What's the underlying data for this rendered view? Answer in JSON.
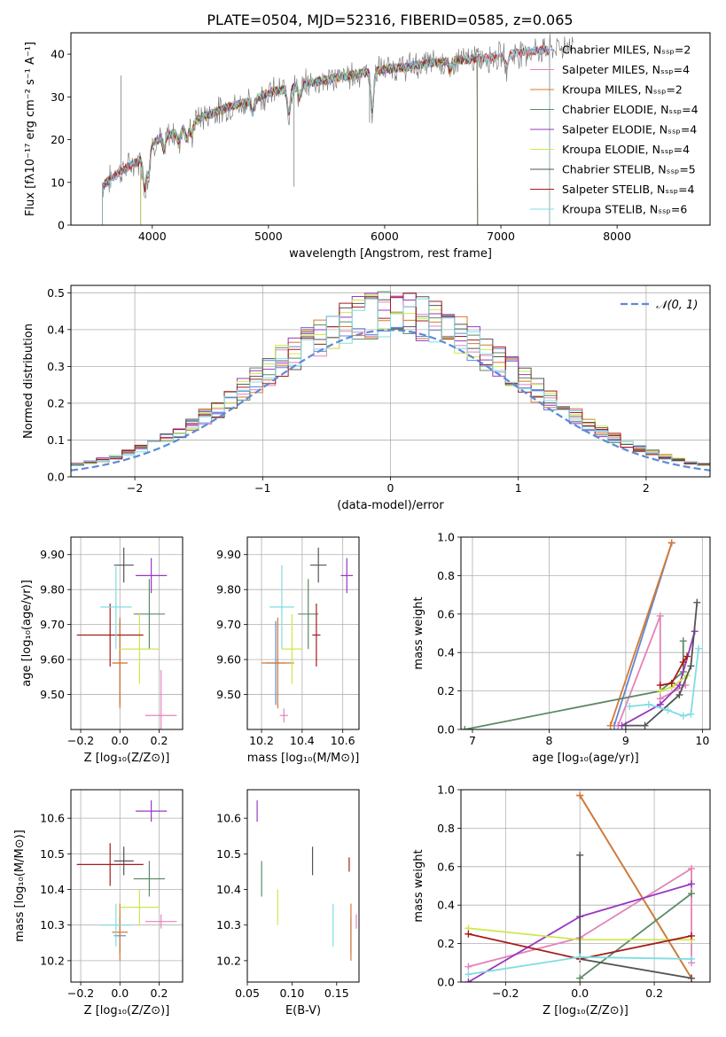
{
  "figure_title": "PLATE=0504, MJD=52316, FIBERID=0585, z=0.065",
  "colors": {
    "Chabrier MILES": "#5e87dc",
    "Salpeter MILES": "#e482b9",
    "Kroupa MILES": "#d9782e",
    "Chabrier ELODIE": "#5b8a66",
    "Salpeter ELODIE": "#9a37c0",
    "Kroupa ELODIE": "#cde84d",
    "Chabrier STELIB": "#545454",
    "Salpeter STELIB": "#a61b1b",
    "Kroupa STELIB": "#7fdde2",
    "gaussian": "#5e8ad6"
  },
  "chart_data": [
    {
      "id": "spectrum",
      "type": "line",
      "xlabel": "wavelength [Angstrom, rest frame]",
      "ylabel": "Flux [fλ10⁻¹⁷ erg cm⁻² s⁻¹ A⁻¹]",
      "xlim": [
        3300,
        8800
      ],
      "ylim": [
        0,
        45
      ],
      "xticks": [
        4000,
        5000,
        6000,
        7000,
        8000
      ],
      "yticks": [
        0,
        10,
        20,
        30,
        40
      ],
      "grid": false,
      "legend_position": "right",
      "legend": [
        {
          "label": "Chabrier MILES, Nₛₛₚ=2",
          "model": "Chabrier MILES"
        },
        {
          "label": "Salpeter MILES, Nₛₛₚ=4",
          "model": "Salpeter MILES"
        },
        {
          "label": "Kroupa MILES, Nₛₛₚ=2",
          "model": "Kroupa MILES"
        },
        {
          "label": "Chabrier ELODIE, Nₛₛₚ=4",
          "model": "Chabrier ELODIE"
        },
        {
          "label": "Salpeter ELODIE, Nₛₛₚ=4",
          "model": "Salpeter ELODIE"
        },
        {
          "label": "Kroupa ELODIE, Nₛₛₚ=4",
          "model": "Kroupa ELODIE"
        },
        {
          "label": "Chabrier STELIB, Nₛₛₚ=5",
          "model": "Chabrier STELIB"
        },
        {
          "label": "Salpeter STELIB, Nₛₛₚ=4",
          "model": "Salpeter STELIB"
        },
        {
          "label": "Kroupa STELIB, Nₛₛₚ=6",
          "model": "Kroupa STELIB"
        }
      ],
      "continuum": {
        "x": [
          3570,
          3650,
          3750,
          3850,
          3950,
          4000,
          4100,
          4200,
          4300,
          4400,
          4500,
          4700,
          4860,
          5000,
          5200,
          5400,
          5600,
          5800,
          6000,
          6200,
          6400,
          6600,
          6800,
          7000,
          7200,
          7400,
          7600
        ],
        "y": [
          9,
          11,
          13,
          14.5,
          16,
          19,
          21,
          21.5,
          23,
          25,
          26,
          28,
          29,
          31,
          32,
          33.5,
          34.5,
          35.5,
          36.5,
          37,
          38,
          38.5,
          39,
          39.5,
          40.5,
          41,
          42
        ]
      },
      "model_ranges": {
        "Kroupa ELODIE": [
          3900,
          6800
        ],
        "Salpeter ELODIE": [
          3900,
          6800
        ],
        "Chabrier ELODIE": [
          3900,
          6800
        ],
        "Chabrier STELIB": [
          3570,
          6800
        ],
        "Salpeter STELIB": [
          3570,
          7420
        ],
        "Kroupa STELIB": [
          3570,
          7420
        ],
        "Chabrier MILES": [
          3570,
          7420
        ],
        "Salpeter MILES": [
          3570,
          7420
        ],
        "Kroupa MILES": [
          3570,
          7420
        ]
      },
      "absorption_lines": [
        {
          "x": 3934,
          "depth": 8
        },
        {
          "x": 3969,
          "depth": 6
        },
        {
          "x": 4101,
          "depth": 4
        },
        {
          "x": 4227,
          "depth": 3
        },
        {
          "x": 4300,
          "depth": 3
        },
        {
          "x": 4340,
          "depth": 3
        },
        {
          "x": 4861,
          "depth": 3
        },
        {
          "x": 5175,
          "depth": 6
        },
        {
          "x": 5270,
          "depth": 3
        },
        {
          "x": 5893,
          "depth": 10
        },
        {
          "x": 6563,
          "depth": 3
        },
        {
          "x": 7050,
          "depth": 3
        }
      ],
      "data_spikes": [
        {
          "x": 3730,
          "y": 35
        },
        {
          "x": 5220,
          "y": 9
        },
        {
          "x": 5870,
          "y": 24
        }
      ]
    },
    {
      "id": "residual_histogram",
      "type": "line",
      "xlabel": "(data-model)/error",
      "ylabel": "Normed distribution",
      "xlim": [
        -2.5,
        2.5
      ],
      "ylim": [
        0,
        0.52
      ],
      "xticks": [
        -2,
        -1,
        0,
        1,
        2
      ],
      "yticks": [
        0,
        0.1,
        0.2,
        0.3,
        0.4,
        0.5
      ],
      "grid": true,
      "legend_position": "top-right",
      "gaussian_legend": "𝒩(0, 1)",
      "bin_width": 0.1
    },
    {
      "id": "age_vs_Z",
      "type": "scatter",
      "xlabel": "Z [log₁₀(Z/Z⊙)]",
      "ylabel": "age  [log₁₀(age/yr)]",
      "xlim": [
        -0.25,
        0.32
      ],
      "ylim": [
        9.4,
        9.95
      ],
      "xticks": [
        -0.2,
        0.0,
        0.2
      ],
      "yticks": [
        9.5,
        9.6,
        9.7,
        9.8,
        9.9
      ],
      "grid": true,
      "points": [
        {
          "model": "Chabrier MILES",
          "x": 0.0,
          "y": 9.59,
          "dx": 0.03,
          "dy": 0.12
        },
        {
          "model": "Salpeter MILES",
          "x": 0.21,
          "y": 9.44,
          "dx": 0.08,
          "dy": 0.13
        },
        {
          "model": "Kroupa MILES",
          "x": 0.0,
          "y": 9.59,
          "dx": 0.04,
          "dy": 0.13
        },
        {
          "model": "Chabrier ELODIE",
          "x": 0.15,
          "y": 9.73,
          "dx": 0.08,
          "dy": 0.1
        },
        {
          "model": "Salpeter ELODIE",
          "x": 0.16,
          "y": 9.84,
          "dx": 0.08,
          "dy": 0.05
        },
        {
          "model": "Kroupa ELODIE",
          "x": 0.1,
          "y": 9.63,
          "dx": 0.1,
          "dy": 0.1
        },
        {
          "model": "Chabrier STELIB",
          "x": 0.02,
          "y": 9.87,
          "dx": 0.05,
          "dy": 0.05
        },
        {
          "model": "Salpeter STELIB",
          "x": -0.05,
          "y": 9.67,
          "dx": 0.17,
          "dy": 0.09
        },
        {
          "model": "Kroupa STELIB",
          "x": -0.02,
          "y": 9.75,
          "dx": 0.08,
          "dy": 0.12
        }
      ]
    },
    {
      "id": "age_vs_mass",
      "type": "scatter",
      "xlabel": "mass [log₁₀(M/M⊙)]",
      "ylabel": "",
      "xlim": [
        10.13,
        10.68
      ],
      "ylim": [
        9.4,
        9.95
      ],
      "xticks": [
        10.2,
        10.4,
        10.6
      ],
      "yticks": [
        9.5,
        9.6,
        9.7,
        9.8,
        9.9
      ],
      "grid": true,
      "points": [
        {
          "model": "Chabrier MILES",
          "x": 10.27,
          "y": 9.59,
          "dx": 0.05,
          "dy": 0.12
        },
        {
          "model": "Salpeter MILES",
          "x": 10.31,
          "y": 9.44,
          "dx": 0.02,
          "dy": 0.02
        },
        {
          "model": "Kroupa MILES",
          "x": 10.28,
          "y": 9.59,
          "dx": 0.08,
          "dy": 0.13
        },
        {
          "model": "Chabrier ELODIE",
          "x": 10.43,
          "y": 9.73,
          "dx": 0.05,
          "dy": 0.1
        },
        {
          "model": "Salpeter ELODIE",
          "x": 10.62,
          "y": 9.84,
          "dx": 0.03,
          "dy": 0.05
        },
        {
          "model": "Kroupa ELODIE",
          "x": 10.35,
          "y": 9.63,
          "dx": 0.05,
          "dy": 0.1
        },
        {
          "model": "Chabrier STELIB",
          "x": 10.48,
          "y": 9.87,
          "dx": 0.04,
          "dy": 0.05
        },
        {
          "model": "Salpeter STELIB",
          "x": 10.47,
          "y": 9.67,
          "dx": 0.02,
          "dy": 0.09
        },
        {
          "model": "Kroupa STELIB",
          "x": 10.3,
          "y": 9.75,
          "dx": 0.06,
          "dy": 0.12
        }
      ]
    },
    {
      "id": "weight_vs_age",
      "type": "line",
      "xlabel": "age  [log₁₀(age/yr)]",
      "ylabel": "mass weight",
      "xlim": [
        6.85,
        10.1
      ],
      "ylim": [
        0,
        1.0
      ],
      "xticks": [
        7,
        8,
        9,
        10
      ],
      "yticks": [
        0.0,
        0.2,
        0.4,
        0.6,
        0.8,
        1.0
      ],
      "grid": true,
      "series": [
        {
          "model": "Chabrier MILES",
          "x": [
            8.85,
            9.6
          ],
          "y": [
            0.02,
            0.97
          ]
        },
        {
          "model": "Salpeter MILES",
          "x": [
            8.9,
            9.45,
            9.45,
            9.78
          ],
          "y": [
            0.02,
            0.59,
            0.16,
            0.23
          ]
        },
        {
          "model": "Kroupa MILES",
          "x": [
            8.8,
            9.6
          ],
          "y": [
            0.02,
            0.97
          ]
        },
        {
          "model": "Chabrier ELODIE",
          "x": [
            6.9,
            9.45,
            9.75,
            9.75
          ],
          "y": [
            0.0,
            0.2,
            0.3,
            0.46
          ]
        },
        {
          "model": "Salpeter ELODIE",
          "x": [
            8.95,
            9.45,
            9.7,
            9.9
          ],
          "y": [
            0.02,
            0.13,
            0.23,
            0.51
          ]
        },
        {
          "model": "Kroupa ELODIE",
          "x": [
            9.45,
            9.6,
            9.8
          ],
          "y": [
            0.2,
            0.22,
            0.28
          ]
        },
        {
          "model": "Chabrier STELIB",
          "x": [
            9.0,
            9.25,
            9.7,
            9.85,
            9.93
          ],
          "y": [
            0.02,
            0.02,
            0.18,
            0.33,
            0.66
          ]
        },
        {
          "model": "Salpeter STELIB",
          "x": [
            9.45,
            9.6,
            9.75,
            9.8
          ],
          "y": [
            0.23,
            0.24,
            0.35,
            0.38
          ]
        },
        {
          "model": "Kroupa STELIB",
          "x": [
            9.05,
            9.3,
            9.55,
            9.75,
            9.85,
            9.95
          ],
          "y": [
            0.12,
            0.13,
            0.1,
            0.07,
            0.08,
            0.42
          ]
        }
      ]
    },
    {
      "id": "mass_vs_Z",
      "type": "scatter",
      "xlabel": "Z [log₁₀(Z/Z⊙)]",
      "ylabel": "mass [log₁₀(M/M⊙)]",
      "xlim": [
        -0.25,
        0.32
      ],
      "ylim": [
        10.14,
        10.68
      ],
      "xticks": [
        -0.2,
        0.0,
        0.2
      ],
      "yticks": [
        10.2,
        10.3,
        10.4,
        10.5,
        10.6
      ],
      "grid": true,
      "points": [
        {
          "model": "Chabrier MILES",
          "x": 0.0,
          "y": 10.27,
          "dx": 0.03,
          "dy": 0.05
        },
        {
          "model": "Salpeter MILES",
          "x": 0.21,
          "y": 10.31,
          "dx": 0.08,
          "dy": 0.02
        },
        {
          "model": "Kroupa MILES",
          "x": 0.0,
          "y": 10.28,
          "dx": 0.04,
          "dy": 0.08
        },
        {
          "model": "Chabrier ELODIE",
          "x": 0.15,
          "y": 10.43,
          "dx": 0.08,
          "dy": 0.05
        },
        {
          "model": "Salpeter ELODIE",
          "x": 0.16,
          "y": 10.62,
          "dx": 0.08,
          "dy": 0.03
        },
        {
          "model": "Kroupa ELODIE",
          "x": 0.1,
          "y": 10.35,
          "dx": 0.1,
          "dy": 0.05
        },
        {
          "model": "Chabrier STELIB",
          "x": 0.02,
          "y": 10.48,
          "dx": 0.05,
          "dy": 0.04
        },
        {
          "model": "Salpeter STELIB",
          "x": -0.05,
          "y": 10.47,
          "dx": 0.17,
          "dy": 0.06
        },
        {
          "model": "Kroupa STELIB",
          "x": -0.02,
          "y": 10.3,
          "dx": 0.08,
          "dy": 0.06
        }
      ]
    },
    {
      "id": "mass_vs_EBV",
      "type": "scatter",
      "xlabel": "E(B-V)",
      "ylabel": "",
      "xlim": [
        0.05,
        0.175
      ],
      "ylim": [
        10.14,
        10.68
      ],
      "xticks": [
        0.05,
        0.1,
        0.15
      ],
      "yticks": [
        10.2,
        10.3,
        10.4,
        10.5,
        10.6
      ],
      "grid": false,
      "points": [
        {
          "model": "Chabrier MILES",
          "x": 0.166,
          "y": 10.27,
          "dx": 0,
          "dy": 0.05
        },
        {
          "model": "Salpeter MILES",
          "x": 0.172,
          "y": 10.31,
          "dx": 0,
          "dy": 0.02
        },
        {
          "model": "Kroupa MILES",
          "x": 0.166,
          "y": 10.28,
          "dx": 0,
          "dy": 0.08
        },
        {
          "model": "Chabrier ELODIE",
          "x": 0.066,
          "y": 10.43,
          "dx": 0,
          "dy": 0.05
        },
        {
          "model": "Salpeter ELODIE",
          "x": 0.061,
          "y": 10.62,
          "dx": 0,
          "dy": 0.03
        },
        {
          "model": "Kroupa ELODIE",
          "x": 0.084,
          "y": 10.35,
          "dx": 0,
          "dy": 0.05
        },
        {
          "model": "Chabrier STELIB",
          "x": 0.123,
          "y": 10.48,
          "dx": 0,
          "dy": 0.04
        },
        {
          "model": "Salpeter STELIB",
          "x": 0.164,
          "y": 10.47,
          "dx": 0,
          "dy": 0.02
        },
        {
          "model": "Kroupa STELIB",
          "x": 0.146,
          "y": 10.3,
          "dx": 0,
          "dy": 0.06
        }
      ]
    },
    {
      "id": "weight_vs_Z",
      "type": "line",
      "xlabel": "Z [log₁₀(Z/Z⊙)]",
      "ylabel": "mass weight",
      "xlim": [
        -0.32,
        0.35
      ],
      "ylim": [
        0,
        1.0
      ],
      "xticks": [
        -0.2,
        0.0,
        0.2
      ],
      "yticks": [
        0.0,
        0.2,
        0.4,
        0.6,
        0.8,
        1.0
      ],
      "grid": true,
      "series": [
        {
          "model": "Chabrier MILES",
          "x": [
            0.0,
            0.3
          ],
          "y": [
            0.97,
            0.02
          ]
        },
        {
          "model": "Salpeter MILES",
          "x": [
            -0.3,
            0.0,
            0.3,
            0.3
          ],
          "y": [
            0.08,
            0.23,
            0.59,
            0.1
          ]
        },
        {
          "model": "Kroupa MILES",
          "x": [
            0.0,
            0.3
          ],
          "y": [
            0.97,
            0.02
          ]
        },
        {
          "model": "Chabrier ELODIE",
          "x": [
            0.0,
            0.3
          ],
          "y": [
            0.02,
            0.46
          ]
        },
        {
          "model": "Salpeter ELODIE",
          "x": [
            -0.3,
            0.0,
            0.3
          ],
          "y": [
            0.0,
            0.34,
            0.51
          ]
        },
        {
          "model": "Kroupa ELODIE",
          "x": [
            -0.3,
            0.0,
            0.3
          ],
          "y": [
            0.28,
            0.22,
            0.22
          ]
        },
        {
          "model": "Chabrier STELIB",
          "x": [
            0.0,
            0.0,
            0.3
          ],
          "y": [
            0.66,
            0.12,
            0.02
          ]
        },
        {
          "model": "Salpeter STELIB",
          "x": [
            -0.3,
            0.0,
            0.3
          ],
          "y": [
            0.25,
            0.12,
            0.24
          ]
        },
        {
          "model": "Kroupa STELIB",
          "x": [
            -0.3,
            0.0,
            0.3
          ],
          "y": [
            0.04,
            0.13,
            0.12
          ]
        }
      ]
    }
  ]
}
